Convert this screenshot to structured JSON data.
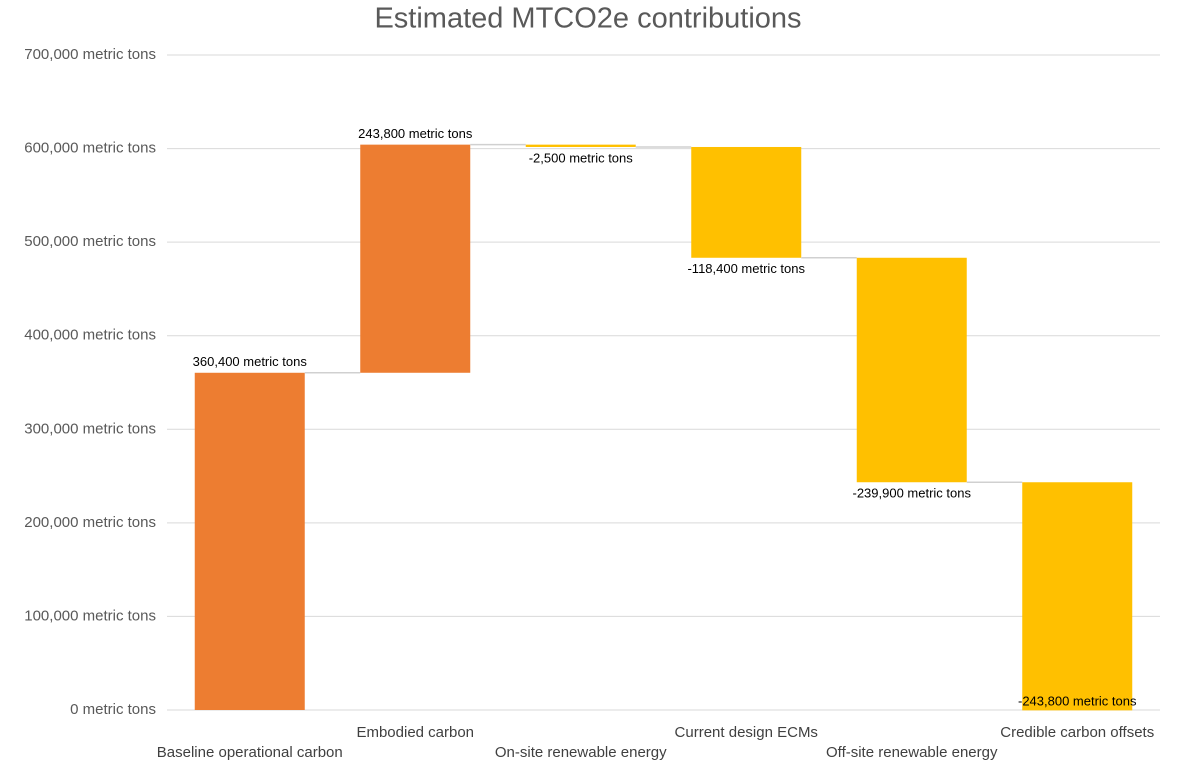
{
  "chart_data": {
    "type": "waterfall",
    "title": "Estimated MTCO2e contributions",
    "categories": [
      "Baseline operational carbon",
      "Embodied carbon",
      "On-site renewable energy",
      "Current design ECMs",
      "Off-site renewable energy",
      "Credible carbon offsets"
    ],
    "values": [
      360400,
      243800,
      -2500,
      -118400,
      -239900,
      -243800
    ],
    "value_labels": [
      "360,400 metric tons",
      "243,800 metric tons",
      "-2,500 metric tons",
      "-118,400 metric tons",
      "-239,900 metric tons",
      "-243,800 metric tons"
    ],
    "colors": [
      "#ED7D31",
      "#ED7D31",
      "#FFC000",
      "#FFC000",
      "#FFC000",
      "#FFC000"
    ],
    "ylim": [
      0,
      700000
    ],
    "yticks": [
      {
        "value": 0,
        "label": "0 metric tons"
      },
      {
        "value": 100000,
        "label": "100,000 metric tons"
      },
      {
        "value": 200000,
        "label": "200,000 metric tons"
      },
      {
        "value": 300000,
        "label": "300,000 metric tons"
      },
      {
        "value": 400000,
        "label": "400,000 metric tons"
      },
      {
        "value": 500000,
        "label": "500,000 metric tons"
      },
      {
        "value": 600000,
        "label": "600,000 metric tons"
      },
      {
        "value": 700000,
        "label": "700,000 metric tons"
      }
    ],
    "grid": true
  }
}
